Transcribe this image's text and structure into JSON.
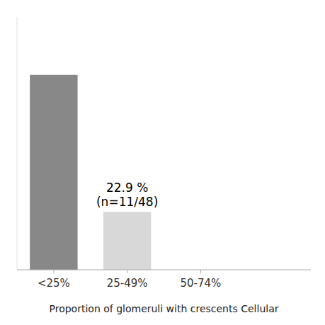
{
  "chart_data": {
    "type": "bar",
    "categories": [
      "<25%",
      "25-49%",
      "50-74%",
      null
    ],
    "values": [
      77.1,
      22.9,
      0,
      0
    ],
    "colors": [
      "#888888",
      "#d8d8d8",
      "#d8d8d8",
      "#d8d8d8"
    ],
    "xlabel": "Proportion of glomeruli with crescents Cellular",
    "annotations": [
      {
        "text": "22.9 %\n(n=11/48)",
        "x": "25-49%"
      }
    ],
    "ylim": [
      0,
      100
    ],
    "grid": false,
    "tick_labels": "x"
  }
}
